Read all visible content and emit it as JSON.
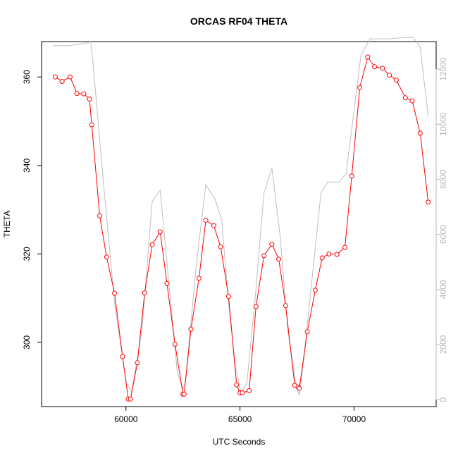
{
  "chart_data": {
    "type": "line",
    "title": "ORCAS RF04 THETA",
    "xlabel": "UTC Seconds",
    "ylabel": "THETA",
    "xlim": [
      56300,
      73600
    ],
    "ylim": [
      285.5,
      368.0
    ],
    "y2lim": [
      -250,
      13000
    ],
    "x_ticks": [
      60000,
      65000,
      70000
    ],
    "x_tick_labels": [
      "60000",
      "65000",
      "70000"
    ],
    "y_ticks": [
      300,
      320,
      340,
      360
    ],
    "y_tick_labels": [
      "300",
      "320",
      "340",
      "360"
    ],
    "y2_ticks": [
      0,
      2000,
      4000,
      6000,
      8000,
      10000,
      12000
    ],
    "y2_tick_labels": [
      "0",
      "2000",
      "4000",
      "6000",
      "8000",
      "10000",
      "12000"
    ],
    "grid": false,
    "colors": {
      "theta": "#ff0000",
      "altitude": "#bebebe",
      "axes": "#000000",
      "right_axis": "#b8b8b8"
    },
    "series": [
      {
        "axis": "left",
        "style": "line+circles",
        "x": [
          56900,
          57200,
          57550,
          57850,
          58150,
          58400,
          58500,
          58850,
          59150,
          59500,
          59850,
          60100,
          60200,
          60500,
          60820,
          61150,
          61500,
          61800,
          62150,
          62500,
          62550,
          62850,
          63200,
          63500,
          63850,
          64150,
          64500,
          64850,
          65000,
          65100,
          65400,
          65700,
          66050,
          66400,
          66700,
          67000,
          67400,
          67550,
          67600,
          67950,
          68300,
          68600,
          68900,
          69250,
          69600,
          69900,
          70250,
          70600,
          70900,
          71250,
          71550,
          71850,
          72250,
          72550,
          72900,
          73250
        ],
        "values": [
          360.0,
          359.0,
          360.0,
          356.3,
          356.2,
          355.0,
          349.2,
          328.6,
          319.3,
          311.1,
          296.8,
          287.2,
          287.2,
          295.4,
          311.2,
          322.1,
          325.0,
          313.3,
          299.6,
          288.3,
          288.3,
          303.0,
          314.5,
          327.6,
          326.4,
          321.6,
          310.4,
          290.4,
          288.6,
          288.6,
          289.1,
          308.1,
          319.6,
          322.2,
          318.8,
          308.3,
          290.3,
          289.9,
          289.6,
          302.4,
          311.8,
          319.1,
          320.0,
          319.9,
          321.5,
          337.6,
          357.6,
          364.5,
          362.3,
          362.0,
          360.4,
          359.3,
          355.3,
          354.6,
          347.3,
          331.7
        ]
      },
      {
        "axis": "right",
        "style": "line",
        "x": [
          56800,
          57500,
          58300,
          58450,
          58550,
          59000,
          59500,
          60000,
          60250,
          60700,
          61150,
          61500,
          61850,
          62250,
          62500,
          62600,
          63100,
          63500,
          63900,
          64200,
          64500,
          64800,
          65050,
          65300,
          65700,
          66050,
          66400,
          66750,
          67100,
          67450,
          67600,
          67800,
          68050,
          68550,
          68850,
          69350,
          69650,
          70000,
          70300,
          70700,
          71500,
          72300,
          72600,
          72900,
          73250
        ],
        "values": [
          12850,
          12850,
          12950,
          13000,
          12300,
          8000,
          3500,
          700,
          280,
          2500,
          7200,
          7600,
          4500,
          1000,
          380,
          600,
          5000,
          7800,
          7300,
          6500,
          3500,
          1200,
          250,
          600,
          4000,
          7500,
          8400,
          6000,
          2500,
          550,
          150,
          1500,
          3500,
          7500,
          7900,
          7900,
          8200,
          10500,
          12500,
          13100,
          13100,
          13150,
          13150,
          12800,
          10300
        ]
      }
    ]
  }
}
